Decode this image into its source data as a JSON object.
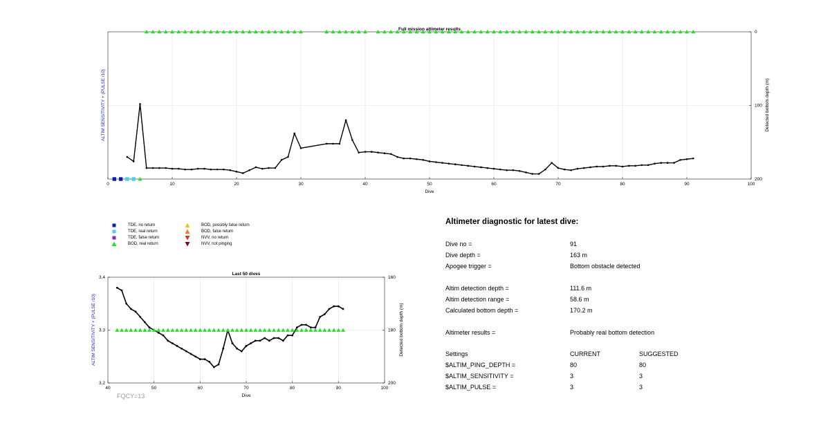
{
  "figure": {
    "top": {
      "title": "Full mission altimeter results",
      "xlabel": "Dive",
      "ylabel_left": "ALTIM SENSITIVITY + (PULSE /10)",
      "ylabel_right": "Detected bottom depth (m)",
      "xticks": [
        "0",
        "10",
        "20",
        "30",
        "40",
        "50",
        "60",
        "70",
        "80",
        "90",
        "100"
      ],
      "yticks_right": [
        "0",
        "100",
        "200"
      ]
    },
    "bottom": {
      "title": "Last 50 dives",
      "xlabel": "Dive",
      "ylabel_left": "ALTIM SENSITIVITY + (PULSE /10)",
      "ylabel_right": "Detected bottom depth (m)",
      "xticks": [
        "40",
        "50",
        "60",
        "70",
        "80",
        "90",
        "100"
      ],
      "yticks_left": [
        "3.4",
        "3.3",
        "3.2"
      ],
      "yticks_right": [
        "160",
        "180",
        "200"
      ]
    }
  },
  "legend": [
    {
      "label": "TDE, no return",
      "marker": "square",
      "color": "#0a1fb8"
    },
    {
      "label": "TDE, real return",
      "marker": "square",
      "color": "#3fd4e8"
    },
    {
      "label": "TDE, false return",
      "marker": "square",
      "color": "#7b2fd0"
    },
    {
      "label": "BOD, real return",
      "marker": "triangle-up",
      "color": "#22e022"
    },
    {
      "label": "BOD, possibly false return",
      "marker": "triangle-up",
      "color": "#f0c419"
    },
    {
      "label": "BOD, false return",
      "marker": "triangle-up",
      "color": "#f07e1a"
    },
    {
      "label": "NVV, no return",
      "marker": "triangle-down",
      "color": "#e0301a"
    },
    {
      "label": "NVV, not pinging",
      "marker": "triangle-down",
      "color": "#7a1010"
    }
  ],
  "diagnostic": {
    "title": "Altimeter diagnostic for latest dive:",
    "dive_no_label": "Dive no =",
    "dive_no": "91",
    "dive_depth_label": "Dive depth =",
    "dive_depth": "163 m",
    "apogee_label": "Apogee trigger =",
    "apogee": "Bottom obstacle detected",
    "det_depth_label": "Altim detection depth =",
    "det_depth": "111.6 m",
    "det_range_label": "Altim detection range =",
    "det_range": "58.6 m",
    "calc_depth_label": "Calculated bottom depth =",
    "calc_depth": "170.2 m",
    "results_label": "Altimeter results =",
    "results": "Probably real bottom detection",
    "settings_label": "Settings",
    "current_label": "CURRENT",
    "suggested_label": "SUGGESTED",
    "ping_label": "$ALTIM_PING_DEPTH =",
    "ping_current": "80",
    "ping_suggested": "80",
    "sens_label": "$ALTIM_SENSITIVITY =",
    "sens_current": "3",
    "sens_suggested": "3",
    "pulse_label": "$ALTIM_PULSE =",
    "pulse_current": "3",
    "pulse_suggested": "3"
  },
  "fqcy": "FQCY=13",
  "chart_data": [
    {
      "type": "line",
      "title": "Full mission altimeter results",
      "xlabel": "Dive",
      "ylabel": "ALTIM SENSITIVITY + (PULSE /10)",
      "ylabel_right": "Detected bottom depth (m)",
      "xlim": [
        0,
        100
      ],
      "ylim_right": [
        200,
        0
      ],
      "grid": true,
      "series": [
        {
          "marker": "line-dot",
          "color": "#000000",
          "x": [
            3,
            4,
            5,
            6,
            7,
            8,
            9,
            10,
            11,
            12,
            13,
            14,
            15,
            16,
            17,
            18,
            19,
            20,
            21,
            22,
            23,
            24,
            25,
            26,
            27,
            28,
            29,
            30,
            34,
            35,
            36,
            37,
            38,
            39,
            40,
            41,
            42,
            43,
            44,
            45,
            46,
            47,
            48,
            49,
            50,
            51,
            52,
            53,
            54,
            55,
            56,
            57,
            58,
            59,
            60,
            61,
            62,
            63,
            64,
            65,
            66,
            67,
            68,
            69,
            70,
            71,
            72,
            73,
            74,
            75,
            76,
            77,
            78,
            79,
            80,
            81,
            82,
            83,
            84,
            85,
            86,
            87,
            88,
            89,
            90,
            91
          ],
          "y": [
            170,
            176,
            98,
            185,
            185,
            185,
            185,
            186,
            186,
            187,
            187,
            186,
            186,
            187,
            187,
            187,
            188,
            190,
            192,
            188,
            184,
            186,
            185,
            185,
            174,
            170,
            138,
            158,
            152,
            152,
            152,
            120,
            147,
            164,
            163,
            163,
            164,
            165,
            166,
            170,
            172,
            172,
            173,
            174,
            176,
            177,
            178,
            179,
            180,
            181,
            182,
            183,
            184,
            185,
            186,
            187,
            188,
            188,
            189,
            191,
            193,
            193,
            187,
            178,
            185,
            187,
            188,
            186,
            185,
            184,
            183,
            183,
            182,
            182,
            183,
            182,
            182,
            181,
            181,
            179,
            178,
            178,
            178,
            174,
            173,
            172
          ]
        },
        {
          "marker": "triangle-up",
          "color": "#22e022",
          "label": "BOD, real return",
          "x": [
            6,
            7,
            8,
            9,
            10,
            11,
            12,
            13,
            14,
            15,
            16,
            17,
            18,
            19,
            20,
            21,
            22,
            23,
            24,
            25,
            26,
            27,
            28,
            29,
            30,
            34,
            35,
            36,
            37,
            38,
            39,
            40,
            42,
            43,
            44,
            45,
            46,
            47,
            48,
            49,
            50,
            51,
            52,
            53,
            54,
            55,
            56,
            57,
            58,
            59,
            60,
            61,
            62,
            63,
            64,
            65,
            66,
            67,
            68,
            69,
            70,
            71,
            72,
            73,
            74,
            75,
            76,
            77,
            78,
            79,
            80,
            81,
            82,
            83,
            84,
            85,
            86,
            87,
            88,
            89,
            90,
            91
          ],
          "y": [
            0,
            0,
            0,
            0,
            0,
            0,
            0,
            0,
            0,
            0,
            0,
            0,
            0,
            0,
            0,
            0,
            0,
            0,
            0,
            0,
            0,
            0,
            0,
            0,
            0,
            0,
            0,
            0,
            0,
            0,
            0,
            0,
            0,
            0,
            0,
            0,
            0,
            0,
            0,
            0,
            0,
            0,
            0,
            0,
            0,
            0,
            0,
            0,
            0,
            0,
            0,
            0,
            0,
            0,
            0,
            0,
            0,
            0,
            0,
            0,
            0,
            0,
            0,
            0,
            0,
            0,
            0,
            0,
            0,
            0,
            0,
            0,
            0,
            0,
            0,
            0,
            0,
            0,
            0,
            0,
            0,
            0
          ]
        },
        {
          "marker": "square",
          "color": "#0a1fb8",
          "label": "TDE, no return",
          "x": [
            1,
            2
          ],
          "y": [
            200,
            200
          ]
        },
        {
          "marker": "square",
          "color": "#3fd4e8",
          "label": "TDE, real return",
          "x": [
            3,
            4
          ],
          "y": [
            200,
            200
          ]
        },
        {
          "marker": "triangle-up",
          "color": "#22e022",
          "label": "BOD, real return",
          "x": [
            5
          ],
          "y": [
            200
          ]
        }
      ]
    },
    {
      "type": "line",
      "title": "Last 50 dives",
      "xlabel": "Dive",
      "ylabel": "ALTIM SENSITIVITY + (PULSE /10)",
      "ylabel_right": "Detected bottom depth (m)",
      "xlim": [
        40,
        100
      ],
      "ylim": [
        3.2,
        3.4
      ],
      "ylim_right": [
        200,
        160
      ],
      "grid": true,
      "series": [
        {
          "marker": "line-dot",
          "color": "#000000",
          "x": [
            42,
            43,
            44,
            45,
            46,
            47,
            48,
            49,
            50,
            51,
            52,
            53,
            54,
            55,
            56,
            57,
            58,
            59,
            60,
            61,
            62,
            63,
            64,
            65,
            66,
            67,
            68,
            69,
            70,
            71,
            72,
            73,
            74,
            75,
            76,
            77,
            78,
            79,
            80,
            81,
            82,
            83,
            84,
            85,
            86,
            87,
            88,
            89,
            90,
            91
          ],
          "y": [
            164,
            165,
            170,
            172,
            173,
            175,
            177,
            179,
            180,
            181,
            182,
            184,
            185,
            186,
            187,
            188,
            189,
            190,
            191,
            191,
            192,
            194,
            193,
            187,
            180,
            185,
            187,
            188,
            186,
            185,
            184,
            184,
            183,
            184,
            183,
            183,
            184,
            182,
            182,
            179,
            178,
            178,
            179,
            179,
            175,
            174,
            172,
            171,
            171,
            172
          ]
        },
        {
          "marker": "triangle-up",
          "color": "#22e022",
          "label": "BOD, real return",
          "x": [
            42,
            43,
            44,
            45,
            46,
            47,
            48,
            49,
            50,
            51,
            52,
            53,
            54,
            55,
            56,
            57,
            58,
            59,
            60,
            61,
            62,
            63,
            64,
            65,
            66,
            67,
            68,
            69,
            70,
            71,
            72,
            73,
            74,
            75,
            76,
            77,
            78,
            79,
            80,
            81,
            82,
            83,
            84,
            85,
            86,
            87,
            88,
            89,
            90,
            91
          ],
          "y": [
            3.3,
            3.3,
            3.3,
            3.3,
            3.3,
            3.3,
            3.3,
            3.3,
            3.3,
            3.3,
            3.3,
            3.3,
            3.3,
            3.3,
            3.3,
            3.3,
            3.3,
            3.3,
            3.3,
            3.3,
            3.3,
            3.3,
            3.3,
            3.3,
            3.3,
            3.3,
            3.3,
            3.3,
            3.3,
            3.3,
            3.3,
            3.3,
            3.3,
            3.3,
            3.3,
            3.3,
            3.3,
            3.3,
            3.3,
            3.3,
            3.3,
            3.3,
            3.3,
            3.3,
            3.3,
            3.3,
            3.3,
            3.3,
            3.3,
            3.3
          ]
        }
      ]
    }
  ]
}
